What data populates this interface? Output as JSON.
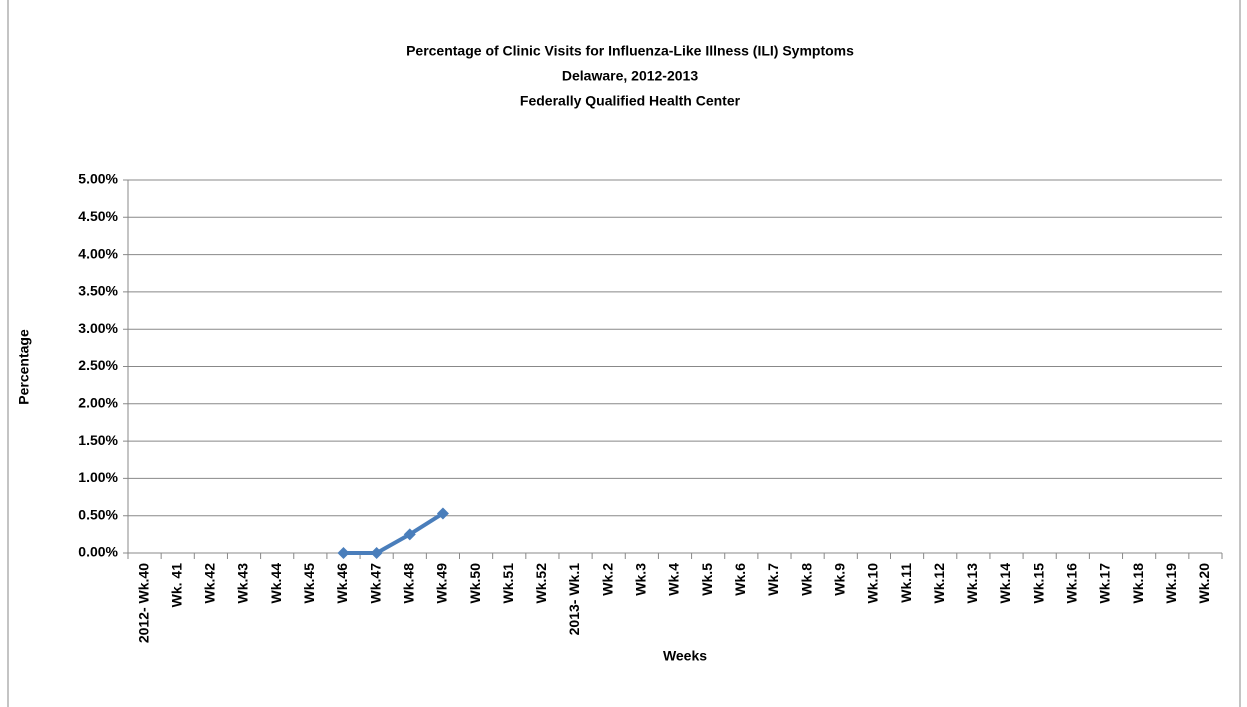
{
  "chart_data": {
    "type": "line",
    "title": [
      "Percentage of Clinic Visits for Influenza-Like Illness (ILI) Symptoms",
      "Delaware, 2012-2013",
      "Federally Qualified Health Center"
    ],
    "x_label": "Weeks",
    "y_label": "Percentage",
    "categories": [
      "2012- Wk.40",
      "Wk. 41",
      "Wk.42",
      "Wk.43",
      "Wk.44",
      "Wk.45",
      "Wk.46",
      "Wk.47",
      "Wk.48",
      "Wk.49",
      "Wk.50",
      "Wk.51",
      "Wk.52",
      "2013- Wk.1",
      "Wk.2",
      "Wk.3",
      "Wk.4",
      "Wk.5",
      "Wk.6",
      "Wk.7",
      "Wk.8",
      "Wk.9",
      "Wk.10",
      "Wk.11",
      "Wk.12",
      "Wk.13",
      "Wk.14",
      "Wk.15",
      "Wk.16",
      "Wk.17",
      "Wk.18",
      "Wk.19",
      "Wk.20"
    ],
    "values": [
      null,
      null,
      null,
      null,
      null,
      null,
      0,
      0,
      0.25,
      0.53,
      null,
      null,
      null,
      null,
      null,
      null,
      null,
      null,
      null,
      null,
      null,
      null,
      null,
      null,
      null,
      null,
      null,
      null,
      null,
      null,
      null,
      null,
      null
    ],
    "color": "#4a7ebb",
    "ylim": [
      0,
      5
    ],
    "yticks": [
      {
        "value": 0,
        "label": "0.00%"
      },
      {
        "value": 0.5,
        "label": "0.50%"
      },
      {
        "value": 1,
        "label": "1.00%"
      },
      {
        "value": 1.5,
        "label": "1.50%"
      },
      {
        "value": 2,
        "label": "2.00%"
      },
      {
        "value": 2.5,
        "label": "2.50%"
      },
      {
        "value": 3,
        "label": "3.00%"
      },
      {
        "value": 3.5,
        "label": "3.50%"
      },
      {
        "value": 4,
        "label": "4.00%"
      },
      {
        "value": 4.5,
        "label": "4.50%"
      },
      {
        "value": 5,
        "label": "5.00%"
      }
    ],
    "grid": true
  }
}
